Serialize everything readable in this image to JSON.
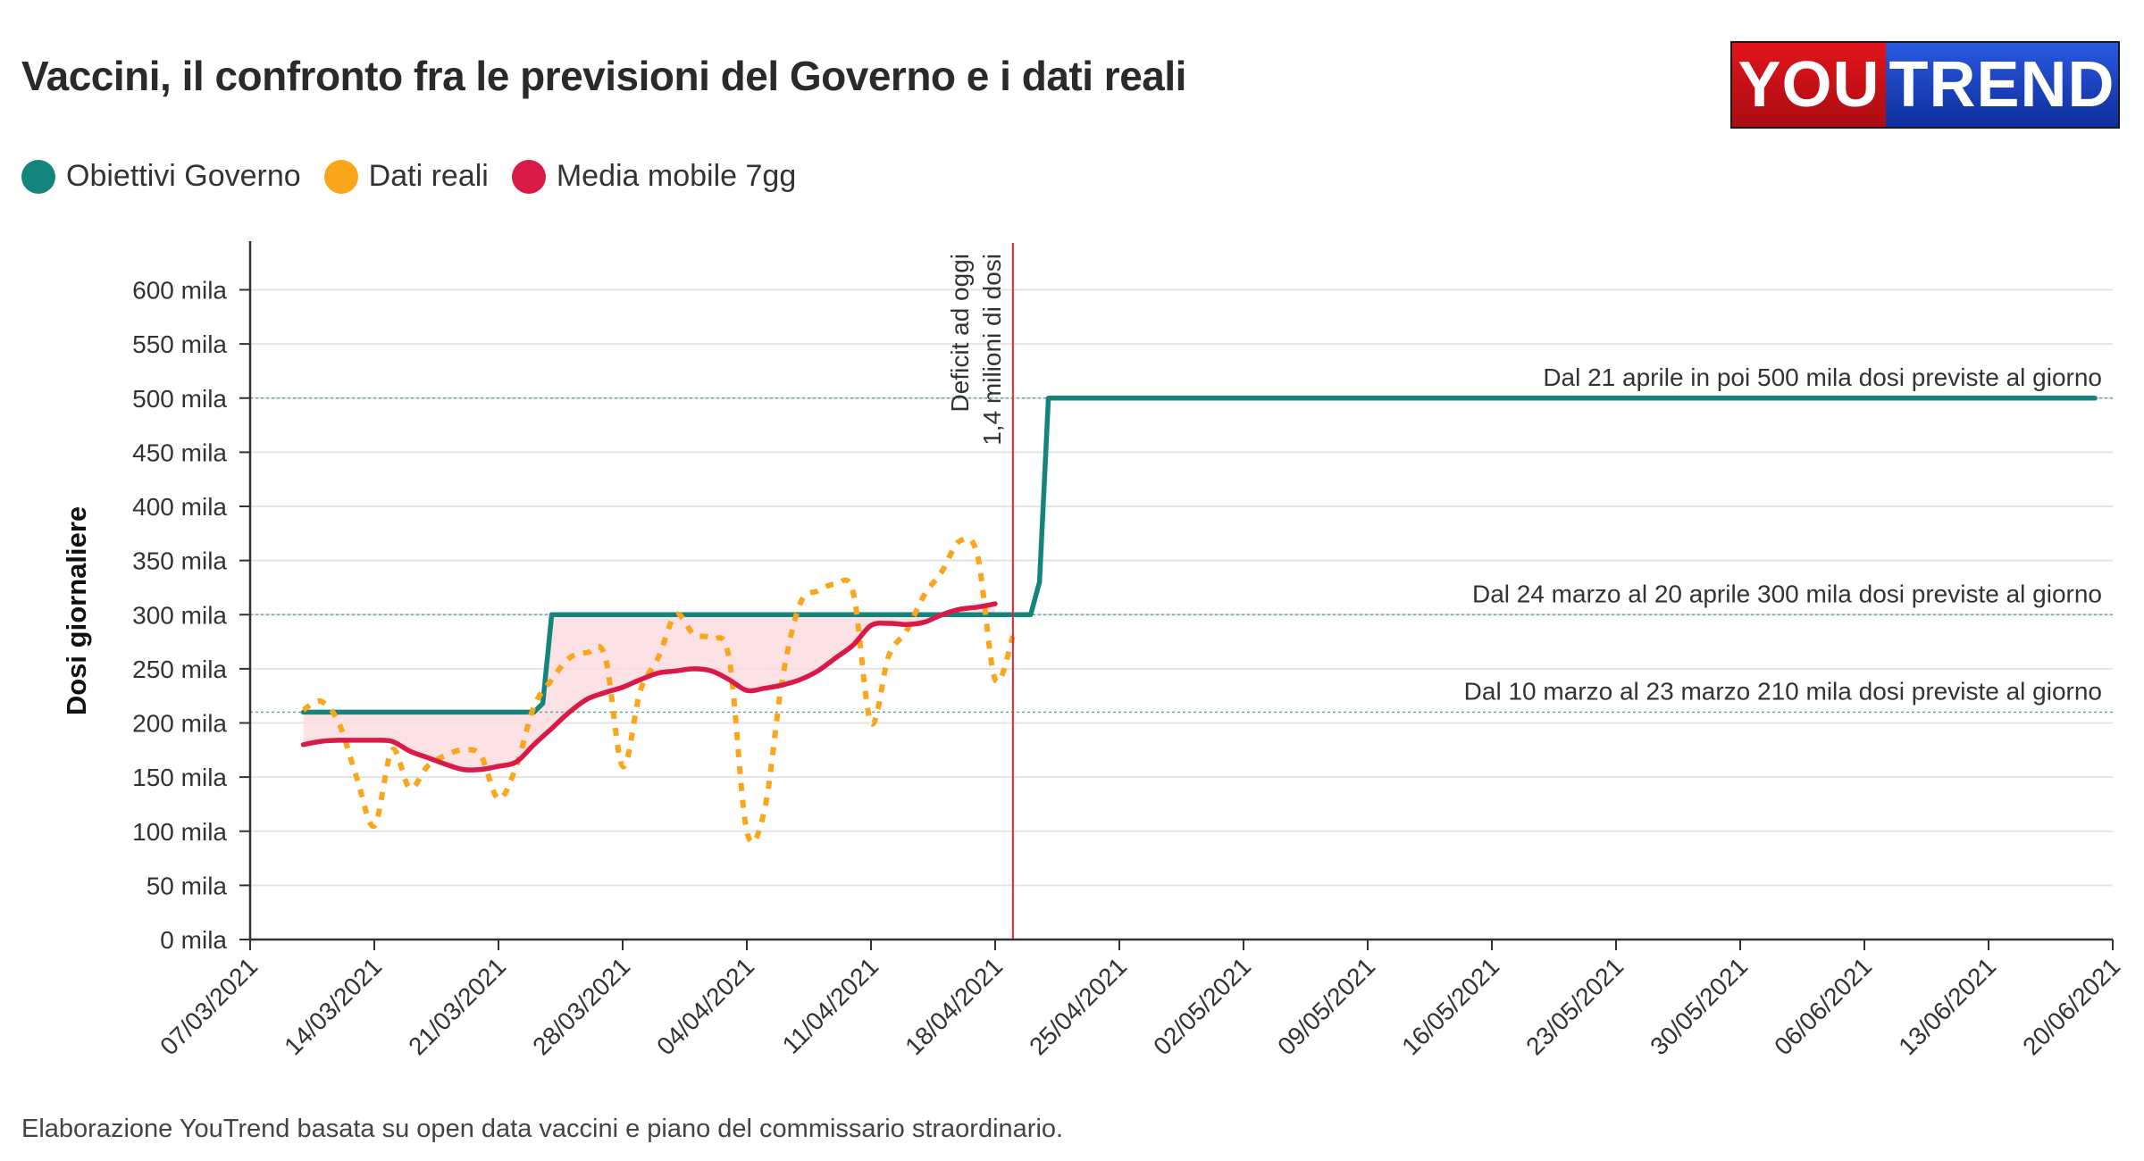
{
  "header": {
    "title": "Vaccini, il confronto fra le previsioni del Governo e i dati reali",
    "logo_left": "YOU",
    "logo_right": "TREND"
  },
  "legend": [
    {
      "label": "Obiettivi Governo",
      "color": "#13857d"
    },
    {
      "label": "Dati reali",
      "color": "#f9a61a"
    },
    {
      "label": "Media mobile 7gg",
      "color": "#d91a48"
    }
  ],
  "footer": "Elaborazione YouTrend basata su open data vaccini e piano del commissario straordinario.",
  "chart_data": {
    "type": "line",
    "title": "Vaccini, il confronto fra le previsioni del Governo e i dati reali",
    "ylabel": "Dosi giornaliere",
    "xlabel": "",
    "ylim": [
      0,
      640000
    ],
    "x_range": [
      "2021-03-07",
      "2021-06-20"
    ],
    "grid": true,
    "y_ticks": [
      {
        "value": 0,
        "label": "0 mila"
      },
      {
        "value": 50000,
        "label": "50 mila"
      },
      {
        "value": 100000,
        "label": "100 mila"
      },
      {
        "value": 150000,
        "label": "150 mila"
      },
      {
        "value": 200000,
        "label": "200 mila"
      },
      {
        "value": 250000,
        "label": "250 mila"
      },
      {
        "value": 300000,
        "label": "300 mila"
      },
      {
        "value": 350000,
        "label": "350 mila"
      },
      {
        "value": 400000,
        "label": "400 mila"
      },
      {
        "value": 450000,
        "label": "450 mila"
      },
      {
        "value": 500000,
        "label": "500 mila"
      },
      {
        "value": 550000,
        "label": "550 mila"
      },
      {
        "value": 600000,
        "label": "600 mila"
      }
    ],
    "x_ticks": [
      {
        "day": 0,
        "label": "07/03/2021"
      },
      {
        "day": 7,
        "label": "14/03/2021"
      },
      {
        "day": 14,
        "label": "21/03/2021"
      },
      {
        "day": 21,
        "label": "28/03/2021"
      },
      {
        "day": 28,
        "label": "04/04/2021"
      },
      {
        "day": 35,
        "label": "11/04/2021"
      },
      {
        "day": 42,
        "label": "18/04/2021"
      },
      {
        "day": 49,
        "label": "25/04/2021"
      },
      {
        "day": 56,
        "label": "02/05/2021"
      },
      {
        "day": 63,
        "label": "09/05/2021"
      },
      {
        "day": 70,
        "label": "16/05/2021"
      },
      {
        "day": 77,
        "label": "23/05/2021"
      },
      {
        "day": 84,
        "label": "30/05/2021"
      },
      {
        "day": 91,
        "label": "06/06/2021"
      },
      {
        "day": 98,
        "label": "13/06/2021"
      },
      {
        "day": 105,
        "label": "20/06/2021"
      }
    ],
    "reference_lines": [
      {
        "value": 500000,
        "label": "Dal 21 aprile in poi 500 mila dosi previste al giorno"
      },
      {
        "value": 300000,
        "label": "Dal 24 marzo al 20 aprile 300 mila dosi previste al giorno"
      },
      {
        "value": 210000,
        "label": "Dal 10 marzo al 23 marzo 210 mila dosi previste al giorno"
      }
    ],
    "today_marker": {
      "day": 43,
      "label_line1": "Deficit ad oggi",
      "label_line2": "1,4 milioni di dosi"
    },
    "series": [
      {
        "name": "Obiettivi Governo",
        "color": "#13857d",
        "style": "solid",
        "points": [
          [
            3,
            210000
          ],
          [
            16,
            210000
          ],
          [
            16.5,
            218000
          ],
          [
            17,
            300000
          ],
          [
            44,
            300000
          ],
          [
            44.5,
            330000
          ],
          [
            45,
            500000
          ],
          [
            104,
            500000
          ]
        ]
      },
      {
        "name": "Dati reali",
        "color": "#f9a61a",
        "style": "dotted",
        "points": [
          [
            3,
            212000
          ],
          [
            4,
            220000
          ],
          [
            5,
            200000
          ],
          [
            6,
            150000
          ],
          [
            7,
            105000
          ],
          [
            8,
            175000
          ],
          [
            9,
            140000
          ],
          [
            10,
            160000
          ],
          [
            11,
            170000
          ],
          [
            12,
            175000
          ],
          [
            13,
            170000
          ],
          [
            14,
            130000
          ],
          [
            15,
            160000
          ],
          [
            16,
            215000
          ],
          [
            17,
            240000
          ],
          [
            18,
            260000
          ],
          [
            19,
            265000
          ],
          [
            20,
            262000
          ],
          [
            21,
            160000
          ],
          [
            22,
            230000
          ],
          [
            23,
            260000
          ],
          [
            24,
            300000
          ],
          [
            25,
            282000
          ],
          [
            26,
            278000
          ],
          [
            27,
            260000
          ],
          [
            28,
            100000
          ],
          [
            29,
            120000
          ],
          [
            30,
            240000
          ],
          [
            31,
            310000
          ],
          [
            32,
            322000
          ],
          [
            33,
            328000
          ],
          [
            34,
            320000
          ],
          [
            35,
            200000
          ],
          [
            36,
            262000
          ],
          [
            37,
            285000
          ],
          [
            38,
            318000
          ],
          [
            39,
            340000
          ],
          [
            40,
            368000
          ],
          [
            41,
            355000
          ],
          [
            42,
            240000
          ],
          [
            43,
            280000
          ]
        ]
      },
      {
        "name": "Media mobile 7gg",
        "color": "#d91a48",
        "style": "solid",
        "points": [
          [
            3,
            180000
          ],
          [
            4,
            183000
          ],
          [
            5,
            184000
          ],
          [
            6,
            184000
          ],
          [
            7,
            184000
          ],
          [
            8,
            183000
          ],
          [
            9,
            174000
          ],
          [
            10,
            168000
          ],
          [
            11,
            162000
          ],
          [
            12,
            157000
          ],
          [
            13,
            157000
          ],
          [
            14,
            160000
          ],
          [
            15,
            164000
          ],
          [
            16,
            180000
          ],
          [
            17,
            195000
          ],
          [
            18,
            210000
          ],
          [
            19,
            222000
          ],
          [
            20,
            228000
          ],
          [
            21,
            233000
          ],
          [
            22,
            240000
          ],
          [
            23,
            246000
          ],
          [
            24,
            248000
          ],
          [
            25,
            250000
          ],
          [
            26,
            248000
          ],
          [
            27,
            240000
          ],
          [
            28,
            230000
          ],
          [
            29,
            232000
          ],
          [
            30,
            235000
          ],
          [
            31,
            240000
          ],
          [
            32,
            248000
          ],
          [
            33,
            260000
          ],
          [
            34,
            272000
          ],
          [
            35,
            290000
          ],
          [
            36,
            292000
          ],
          [
            37,
            291000
          ],
          [
            38,
            293000
          ],
          [
            39,
            300000
          ],
          [
            40,
            305000
          ],
          [
            41,
            307000
          ],
          [
            42,
            310000
          ]
        ]
      }
    ]
  }
}
